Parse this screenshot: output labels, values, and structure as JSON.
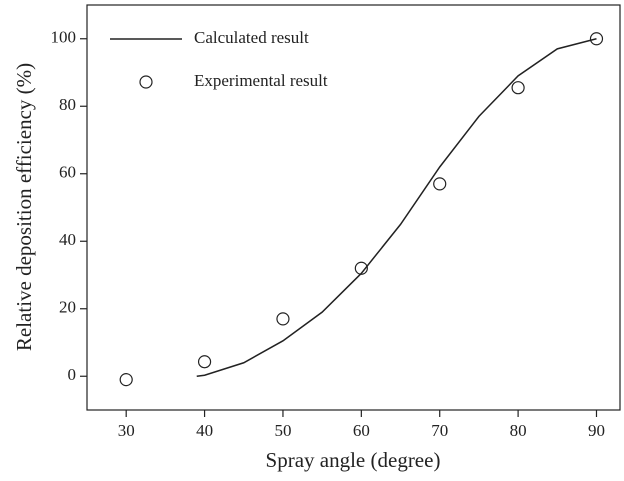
{
  "chart_data": {
    "type": "line",
    "xlabel": "Spray angle (degree)",
    "ylabel": "Relative deposition efficiency (%)",
    "xlim": [
      25,
      93
    ],
    "xticks": [
      30,
      40,
      50,
      60,
      70,
      80,
      90
    ],
    "ylim": [
      -10,
      110
    ],
    "yticks": [
      0,
      20,
      40,
      60,
      80,
      100
    ],
    "legend": "upper left",
    "series": [
      {
        "name": "Calculated result",
        "color": "#222222",
        "style": "line",
        "x": [
          39,
          40,
          45,
          50,
          55,
          60,
          65,
          70,
          75,
          80,
          85,
          90
        ],
        "values": [
          0,
          0.3,
          4,
          10.5,
          19,
          30.5,
          45,
          62,
          77,
          89,
          97,
          100
        ]
      },
      {
        "name": "Experimental result",
        "color": "#222222",
        "style": "markers",
        "x": [
          30,
          40,
          50,
          60,
          70,
          80,
          90
        ],
        "values": [
          -1,
          4.3,
          17,
          32,
          57,
          85.5,
          100
        ]
      }
    ]
  }
}
